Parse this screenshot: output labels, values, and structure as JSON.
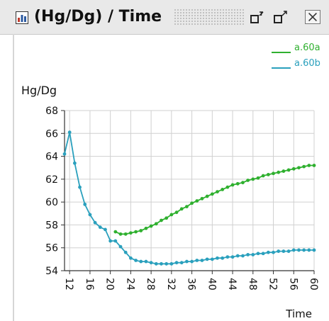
{
  "window": {
    "title": "(Hg/Dg) / Time",
    "title_icon": "chart-icon",
    "buttons": [
      {
        "name": "minimize-button",
        "icon": "restore-icon"
      },
      {
        "name": "maximize-button",
        "icon": "maximize-icon"
      },
      {
        "name": "close-button",
        "icon": "close-icon"
      }
    ]
  },
  "chart_data": {
    "type": "line",
    "title": "",
    "xlabel": "Time",
    "ylabel": "Hg/Dg",
    "xlim": [
      11,
      60
    ],
    "ylim": [
      54,
      68
    ],
    "x_ticks": [
      12,
      16,
      20,
      24,
      28,
      32,
      36,
      40,
      44,
      48,
      52,
      56,
      60
    ],
    "y_ticks": [
      54,
      56,
      58,
      60,
      62,
      64,
      66,
      68
    ],
    "grid": true,
    "legend_position": "top-right",
    "series": [
      {
        "name": "a.60a",
        "color": "#2fb02f",
        "x": [
          21,
          22,
          23,
          24,
          25,
          26,
          27,
          28,
          29,
          30,
          31,
          32,
          33,
          34,
          35,
          36,
          37,
          38,
          39,
          40,
          41,
          42,
          43,
          44,
          45,
          46,
          47,
          48,
          49,
          50,
          51,
          52,
          53,
          54,
          55,
          56,
          57,
          58,
          59,
          60
        ],
        "values": [
          57.4,
          57.2,
          57.2,
          57.3,
          57.4,
          57.5,
          57.7,
          57.9,
          58.1,
          58.4,
          58.6,
          58.9,
          59.1,
          59.4,
          59.6,
          59.9,
          60.1,
          60.3,
          60.5,
          60.7,
          60.9,
          61.1,
          61.3,
          61.5,
          61.6,
          61.7,
          61.9,
          62.0,
          62.1,
          62.3,
          62.4,
          62.5,
          62.6,
          62.7,
          62.8,
          62.9,
          63.0,
          63.1,
          63.2,
          63.2
        ]
      },
      {
        "name": "a.60b",
        "color": "#2aa0bd",
        "x": [
          11,
          12,
          13,
          14,
          15,
          16,
          17,
          18,
          19,
          20,
          21,
          22,
          23,
          24,
          25,
          26,
          27,
          28,
          29,
          30,
          31,
          32,
          33,
          34,
          35,
          36,
          37,
          38,
          39,
          40,
          41,
          42,
          43,
          44,
          45,
          46,
          47,
          48,
          49,
          50,
          51,
          52,
          53,
          54,
          55,
          56,
          57,
          58,
          59,
          60
        ],
        "values": [
          64.2,
          66.1,
          63.4,
          61.3,
          59.8,
          58.9,
          58.2,
          57.8,
          57.6,
          56.6,
          56.6,
          56.1,
          55.6,
          55.1,
          54.9,
          54.8,
          54.8,
          54.7,
          54.6,
          54.6,
          54.6,
          54.6,
          54.7,
          54.7,
          54.8,
          54.8,
          54.9,
          54.9,
          55.0,
          55.0,
          55.1,
          55.1,
          55.2,
          55.2,
          55.3,
          55.3,
          55.4,
          55.4,
          55.5,
          55.5,
          55.6,
          55.6,
          55.7,
          55.7,
          55.7,
          55.8,
          55.8,
          55.8,
          55.8,
          55.8
        ]
      }
    ]
  }
}
